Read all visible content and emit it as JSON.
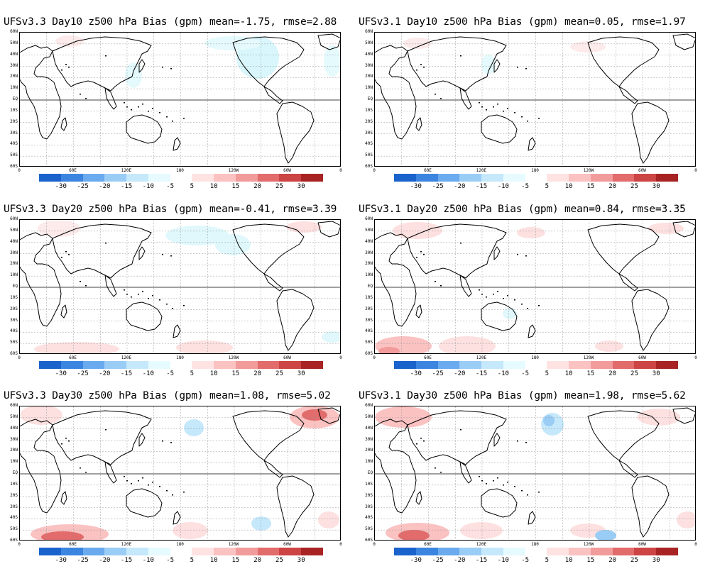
{
  "panels": [
    {
      "id": "p1",
      "title": "UFSv3.3 Day10 z500 hPa Bias (gpm) mean=-1.75, rmse=2.88"
    },
    {
      "id": "p2",
      "title": "UFSv3.1 Day10 z500 hPa Bias (gpm) mean=0.05, rmse=1.97"
    },
    {
      "id": "p3",
      "title": "UFSv3.3 Day20 z500 hPa Bias (gpm) mean=-0.41, rmse=3.39"
    },
    {
      "id": "p4",
      "title": "UFSv3.1 Day20 z500 hPa Bias (gpm) mean=0.84, rmse=3.35"
    },
    {
      "id": "p5",
      "title": "UFSv3.3 Day30 z500 hPa Bias (gpm) mean=1.08, rmse=5.02"
    },
    {
      "id": "p6",
      "title": "UFSv3.1 Day30 z500 hPa Bias (gpm) mean=1.98, rmse=5.62"
    }
  ],
  "lat_labels": [
    "60N",
    "50N",
    "40N",
    "30N",
    "20N",
    "10N",
    "EQ",
    "10S",
    "20S",
    "30S",
    "40S",
    "50S",
    "60S"
  ],
  "lon_labels": [
    "0",
    "60E",
    "120E",
    "180",
    "120W",
    "60W",
    "0"
  ],
  "colorbar": {
    "labels": [
      "-30",
      "-25",
      "-20",
      "-15",
      "-10",
      "-5",
      "5",
      "10",
      "15",
      "20",
      "25",
      "30"
    ],
    "colors": [
      "#1a63cc",
      "#3b85e0",
      "#6aaaee",
      "#9acdf6",
      "#c5e8fb",
      "#e6fbff",
      "#ffffff",
      "#ffe3e3",
      "#fbc2c2",
      "#f29b9b",
      "#e26b6b",
      "#cc4444",
      "#a82424"
    ]
  }
}
